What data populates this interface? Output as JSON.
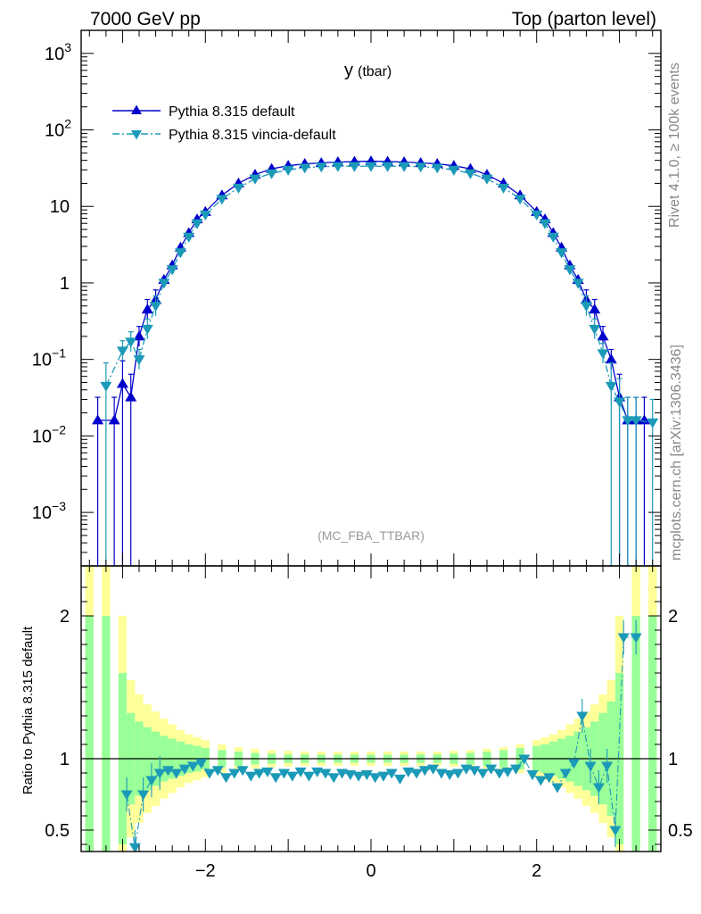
{
  "header": {
    "energy_label": "7000 GeV pp",
    "process_label": "Top (parton level)"
  },
  "side_labels": {
    "rivet": "Rivet 4.1.0, ≥ 100k events",
    "site": "mcplots.cern.ch [arXiv:1306.3436]"
  },
  "chart_data": [
    {
      "type": "line",
      "title": "y",
      "title_suffix": "(tbar)",
      "analysis_label": "(MC_FBA_TTBAR)",
      "xlabel": "",
      "ylabel": "",
      "xlim": [
        -3.5,
        3.5
      ],
      "ylim": [
        0.0002,
        2000
      ],
      "yscale": "log",
      "y_ticks": [
        {
          "value": 0.001,
          "base": "10",
          "exp": "−3"
        },
        {
          "value": 0.01,
          "base": "10",
          "exp": "−2"
        },
        {
          "value": 0.1,
          "base": "10",
          "exp": "−1"
        },
        {
          "value": 1,
          "base": "1",
          "exp": ""
        },
        {
          "value": 10,
          "base": "10",
          "exp": ""
        },
        {
          "value": 100,
          "base": "10",
          "exp": "2"
        },
        {
          "value": 1000,
          "base": "10",
          "exp": "3"
        }
      ],
      "legend_position": "top-left",
      "series": [
        {
          "name": "Pythia 8.315 default",
          "color": "#0000cc",
          "marker": "triangle-up",
          "line": "solid",
          "x": [
            -3.3,
            -3.1,
            -3.0,
            -2.9,
            -2.8,
            -2.7,
            -2.6,
            -2.5,
            -2.4,
            -2.3,
            -2.2,
            -2.1,
            -2.0,
            -1.8,
            -1.6,
            -1.4,
            -1.2,
            -1.0,
            -0.8,
            -0.6,
            -0.4,
            -0.2,
            0.0,
            0.2,
            0.4,
            0.6,
            0.8,
            1.0,
            1.2,
            1.4,
            1.6,
            1.8,
            2.0,
            2.1,
            2.2,
            2.3,
            2.4,
            2.5,
            2.6,
            2.7,
            2.8,
            2.9,
            3.0,
            3.1,
            3.2,
            3.3
          ],
          "y": [
            0.016,
            0.016,
            0.048,
            0.032,
            0.2,
            0.45,
            0.6,
            1.1,
            1.7,
            2.9,
            4.5,
            6.8,
            8.5,
            14,
            20,
            26,
            31,
            34,
            36,
            37,
            38,
            38.5,
            39,
            38.5,
            38,
            37,
            36,
            34,
            31,
            26,
            20,
            14,
            8.5,
            6.8,
            4.5,
            2.9,
            1.7,
            1.1,
            0.6,
            0.45,
            0.2,
            0.1,
            0.032,
            0.016,
            0.016,
            0.016
          ]
        },
        {
          "name": "Pythia 8.315 vincia-default",
          "color": "#1b9ab8",
          "marker": "triangle-down",
          "line": "dash-dot",
          "x": [
            -3.2,
            -3.0,
            -2.9,
            -2.8,
            -2.7,
            -2.6,
            -2.5,
            -2.4,
            -2.3,
            -2.2,
            -2.1,
            -2.0,
            -1.8,
            -1.6,
            -1.4,
            -1.2,
            -1.0,
            -0.8,
            -0.6,
            -0.4,
            -0.2,
            0.0,
            0.2,
            0.4,
            0.6,
            0.8,
            1.0,
            1.2,
            1.4,
            1.6,
            1.8,
            2.0,
            2.1,
            2.2,
            2.3,
            2.4,
            2.5,
            2.6,
            2.7,
            2.8,
            2.9,
            3.0,
            3.1,
            3.2,
            3.4
          ],
          "y": [
            0.045,
            0.13,
            0.17,
            0.1,
            0.25,
            0.5,
            1.0,
            1.5,
            2.5,
            4.0,
            6.0,
            7.8,
            12.5,
            17.5,
            23,
            27,
            30,
            32,
            33,
            33.5,
            33.5,
            33.5,
            33.5,
            33.5,
            33,
            32,
            30,
            27,
            23,
            17.5,
            12.5,
            7.8,
            6.0,
            4.0,
            2.5,
            1.5,
            1.0,
            0.5,
            0.25,
            0.12,
            0.045,
            0.028,
            0.016,
            0.016,
            0.015
          ]
        }
      ]
    },
    {
      "type": "line",
      "title": "",
      "xlabel": "",
      "ylabel": "Ratio to Pythia 8.315 default",
      "xlim": [
        -3.5,
        3.5
      ],
      "ylim": [
        0.35,
        2.35
      ],
      "reference_line": 1,
      "y_ticks": [
        0.5,
        1,
        2
      ],
      "x_ticks": [
        -2,
        0,
        2
      ],
      "x_tick_labels": [
        "−2",
        "0",
        "2"
      ],
      "bands": {
        "yellow_color": "#ffff99",
        "green_color": "#99ff99",
        "x": [
          -3.4,
          -3.2,
          -3.0,
          -2.9,
          -2.8,
          -2.7,
          -2.6,
          -2.5,
          -2.4,
          -2.3,
          -2.2,
          -2.1,
          -2.0,
          -1.8,
          -1.6,
          -1.4,
          -1.2,
          -1.0,
          -0.8,
          -0.6,
          -0.4,
          -0.2,
          0.0,
          0.2,
          0.4,
          0.6,
          0.8,
          1.0,
          1.2,
          1.4,
          1.6,
          1.8,
          2.0,
          2.1,
          2.2,
          2.3,
          2.4,
          2.5,
          2.6,
          2.7,
          2.8,
          2.9,
          3.0,
          3.2,
          3.4
        ],
        "yellow_half_width": [
          2.0,
          2.0,
          1.0,
          0.55,
          0.45,
          0.38,
          0.33,
          0.28,
          0.24,
          0.2,
          0.17,
          0.15,
          0.13,
          0.1,
          0.08,
          0.07,
          0.06,
          0.055,
          0.05,
          0.05,
          0.05,
          0.05,
          0.05,
          0.05,
          0.05,
          0.05,
          0.05,
          0.055,
          0.06,
          0.07,
          0.08,
          0.1,
          0.13,
          0.15,
          0.17,
          0.2,
          0.24,
          0.28,
          0.33,
          0.38,
          0.45,
          0.55,
          1.0,
          2.0,
          2.0
        ],
        "green_half_width": [
          1.0,
          1.0,
          0.6,
          0.32,
          0.26,
          0.22,
          0.19,
          0.16,
          0.14,
          0.12,
          0.1,
          0.09,
          0.075,
          0.06,
          0.05,
          0.04,
          0.035,
          0.03,
          0.03,
          0.028,
          0.028,
          0.028,
          0.028,
          0.028,
          0.028,
          0.03,
          0.03,
          0.035,
          0.04,
          0.05,
          0.06,
          0.075,
          0.09,
          0.1,
          0.12,
          0.14,
          0.16,
          0.19,
          0.22,
          0.26,
          0.32,
          0.4,
          0.6,
          1.0,
          1.0
        ]
      },
      "series": [
        {
          "name": "Pythia 8.315 vincia-default / Pythia 8.315 default",
          "color": "#1b9ab8",
          "marker": "triangle-down",
          "line": "dash-dot",
          "x": [
            -2.95,
            -2.85,
            -2.75,
            -2.65,
            -2.55,
            -2.45,
            -2.35,
            -2.25,
            -2.15,
            -2.05,
            -1.95,
            -1.85,
            -1.75,
            -1.65,
            -1.55,
            -1.45,
            -1.35,
            -1.25,
            -1.15,
            -1.05,
            -0.95,
            -0.85,
            -0.75,
            -0.65,
            -0.55,
            -0.45,
            -0.35,
            -0.25,
            -0.15,
            -0.05,
            0.05,
            0.15,
            0.25,
            0.35,
            0.45,
            0.55,
            0.65,
            0.75,
            0.85,
            0.95,
            1.05,
            1.15,
            1.25,
            1.35,
            1.45,
            1.55,
            1.65,
            1.75,
            1.85,
            1.95,
            2.05,
            2.15,
            2.25,
            2.35,
            2.45,
            2.55,
            2.65,
            2.75,
            2.85,
            2.95,
            3.05,
            3.2
          ],
          "y": [
            0.75,
            0.38,
            0.75,
            0.85,
            0.9,
            0.92,
            0.9,
            0.93,
            0.95,
            0.97,
            0.9,
            0.92,
            0.87,
            0.9,
            0.92,
            0.88,
            0.9,
            0.91,
            0.87,
            0.9,
            0.88,
            0.91,
            0.88,
            0.91,
            0.9,
            0.87,
            0.9,
            0.89,
            0.88,
            0.89,
            0.87,
            0.88,
            0.9,
            0.86,
            0.91,
            0.9,
            0.92,
            0.93,
            0.9,
            0.89,
            0.9,
            0.93,
            0.92,
            0.9,
            0.93,
            0.9,
            0.91,
            0.93,
            1.0,
            0.89,
            0.85,
            0.87,
            0.8,
            0.9,
            0.97,
            1.3,
            0.95,
            0.8,
            0.95,
            0.5,
            1.85,
            1.85
          ]
        }
      ]
    }
  ]
}
